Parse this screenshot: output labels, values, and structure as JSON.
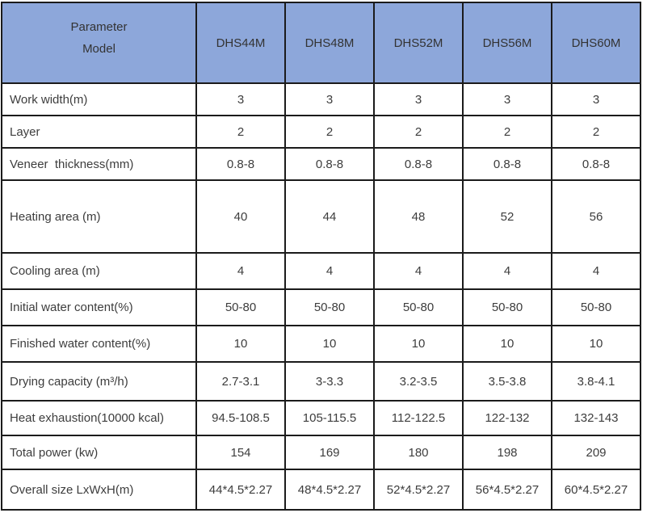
{
  "chart_data": {
    "type": "table",
    "corner_header": {
      "line1": "Parameter",
      "line2": "Model"
    },
    "columns": [
      "DHS44M",
      "DHS48M",
      "DHS52M",
      "DHS56M",
      "DHS60M"
    ],
    "rows": [
      {
        "label": "Work width(m)",
        "values": [
          "3",
          "3",
          "3",
          "3",
          "3"
        ]
      },
      {
        "label": "Layer",
        "values": [
          "2",
          "2",
          "2",
          "2",
          "2"
        ]
      },
      {
        "label": "Veneer  thickness(mm)",
        "values": [
          "0.8-8",
          "0.8-8",
          "0.8-8",
          "0.8-8",
          "0.8-8"
        ]
      },
      {
        "label": "Heating area (m)",
        "values": [
          "40",
          "44",
          "48",
          "52",
          "56"
        ]
      },
      {
        "label": "Cooling area (m)",
        "values": [
          "4",
          "4",
          "4",
          "4",
          "4"
        ]
      },
      {
        "label": "Initial water content(%)",
        "values": [
          "50-80",
          "50-80",
          "50-80",
          "50-80",
          "50-80"
        ]
      },
      {
        "label": "Finished water content(%)",
        "values": [
          "10",
          "10",
          "10",
          "10",
          "10"
        ]
      },
      {
        "label": "Drying capacity (m³/h)",
        "values": [
          "2.7-3.1",
          "3-3.3",
          "3.2-3.5",
          "3.5-3.8",
          "3.8-4.1"
        ]
      },
      {
        "label": "Heat exhaustion(10000 kcal)",
        "values": [
          "94.5-108.5",
          "105-115.5",
          "112-122.5",
          "122-132",
          "132-143"
        ]
      },
      {
        "label": "Total power (kw)",
        "values": [
          "154",
          "169",
          "180",
          "198",
          "209"
        ]
      },
      {
        "label": "Overall size LxWxH(m)",
        "values": [
          "44*4.5*2.27",
          "48*4.5*2.27",
          "52*4.5*2.27",
          "56*4.5*2.27",
          "60*4.5*2.27"
        ]
      }
    ],
    "layout": {
      "header_position": "top-row-and-left-column",
      "grid": "on"
    }
  },
  "colors": {
    "header_bg": "#8DA7DA",
    "grid_line": "#1B1B1B",
    "text": "#3D3D3D"
  }
}
